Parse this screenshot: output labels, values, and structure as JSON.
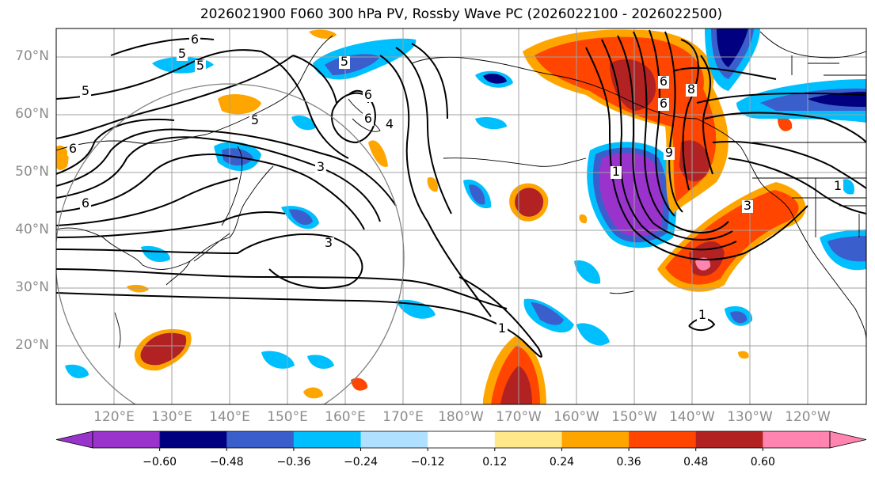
{
  "title": "2026021900 F060 300 hPa PV, Rossby Wave PC (2026022100 - 2026022500)",
  "lat_labels": [
    "70°N",
    "60°N",
    "50°N",
    "40°N",
    "30°N",
    "20°N"
  ],
  "lon_labels": [
    "120°E",
    "130°E",
    "140°E",
    "150°E",
    "160°E",
    "170°E",
    "180°W",
    "170°W",
    "160°W",
    "150°W",
    "140°W",
    "130°W",
    "120°W"
  ],
  "colorbar": {
    "colors": [
      "#9933cc",
      "#000080",
      "#3a5fcd",
      "#00bfff",
      "#b0e0ff",
      "#ffffff",
      "#ffe88a",
      "#ffa500",
      "#ff4500",
      "#b22222",
      "#ff85b0"
    ],
    "ticks": [
      "−0.60",
      "−0.48",
      "−0.36",
      "−0.24",
      "−0.12",
      "0.12",
      "0.24",
      "0.36",
      "0.48",
      "0.60"
    ]
  },
  "contour_labels": [
    "6",
    "5",
    "5",
    "5",
    "5",
    "6",
    "6",
    "6",
    "5",
    "6",
    "4",
    "3",
    "3",
    "1",
    "1",
    "1",
    "6",
    "9",
    "8",
    "6",
    "3",
    "1"
  ],
  "colors": {
    "grid": "#a0a0a0",
    "coast": "#000000",
    "contour": "#000000",
    "circle": "#808080"
  }
}
